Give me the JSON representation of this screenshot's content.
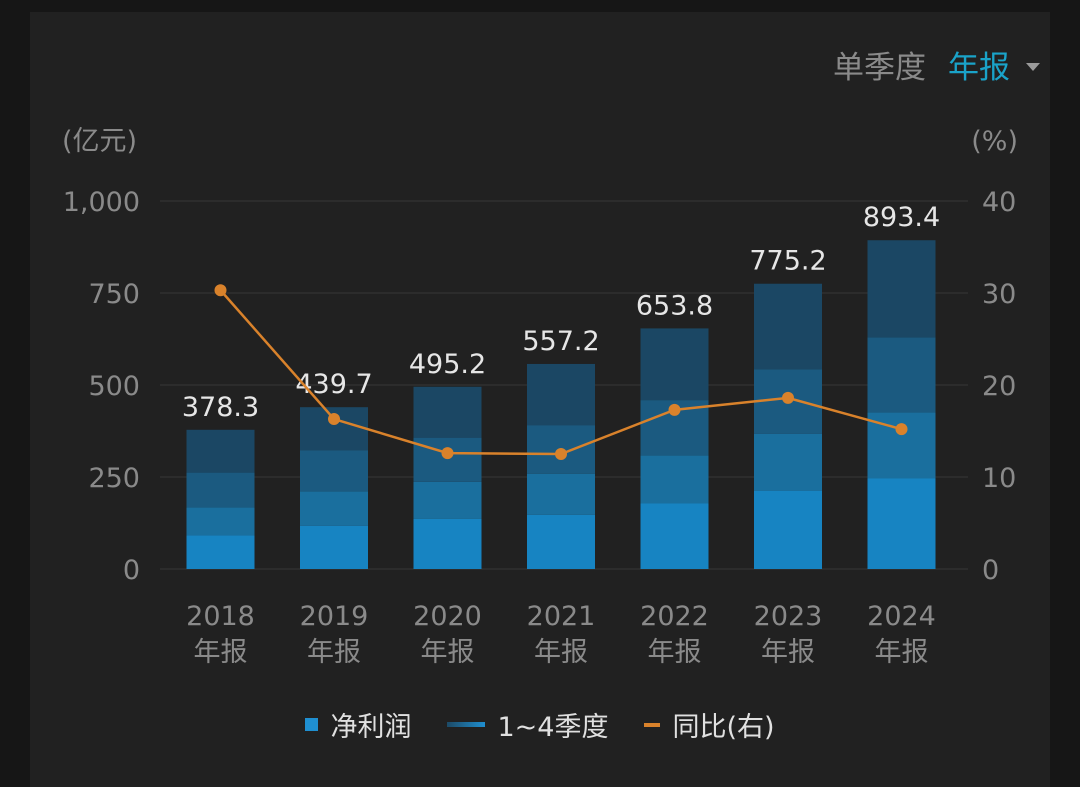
{
  "header": {
    "tab_quarter": "单季度",
    "tab_annual": "年报"
  },
  "legend": {
    "net_profit": "净利润",
    "quarters": "1~4季度",
    "yoy": "同比(右)"
  },
  "colors": {
    "q1": "#1784c2",
    "q2": "#1a6f9e",
    "q3": "#1b5a80",
    "q4": "#1b4764",
    "yoy_line": "#d9822b",
    "accent": "#1aa3c9"
  },
  "chart_data": {
    "type": "bar",
    "categories": [
      "2018",
      "2019",
      "2020",
      "2021",
      "2022",
      "2023",
      "2024"
    ],
    "category_suffix": "年报",
    "totals": [
      378.3,
      439.7,
      495.2,
      557.2,
      653.8,
      775.2,
      893.4
    ],
    "series": [
      {
        "values": [
          92,
          117,
          136,
          147,
          178,
          213,
          247
        ]
      },
      {
        "values": [
          75,
          94,
          101,
          112,
          131,
          154,
          179
        ]
      },
      {
        "values": [
          95,
          112,
          120,
          132,
          150,
          176,
          203
        ]
      },
      {
        "values": [
          116.3,
          116.7,
          138.2,
          166.2,
          194.8,
          232.2,
          264.4
        ]
      }
    ],
    "yoy_percent": [
      30.3,
      16.3,
      12.6,
      12.5,
      17.3,
      18.6,
      15.2
    ],
    "y_left_label": "(亿元)",
    "y_right_label": "(%)",
    "y_left_ticks": [
      "0",
      "250",
      "500",
      "750",
      "1,000"
    ],
    "y_right_ticks": [
      "0",
      "10",
      "20",
      "30",
      "40"
    ],
    "ylim_left": [
      0,
      1000
    ],
    "ylim_right": [
      0,
      40
    ],
    "grid": true,
    "legend_position": "bottom"
  }
}
